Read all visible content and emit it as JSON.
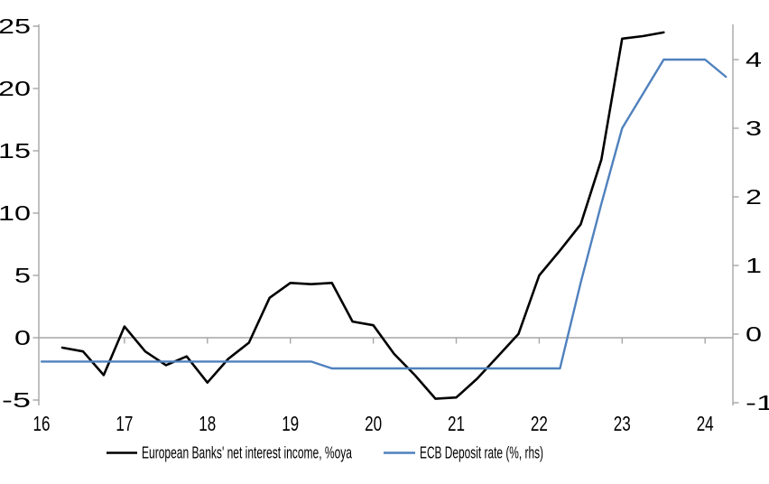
{
  "chart_data": {
    "type": "line",
    "title": "",
    "x_axis": {
      "tick_labels": [
        "16",
        "17",
        "18",
        "19",
        "20",
        "21",
        "22",
        "23",
        "24"
      ],
      "tick_years": [
        16,
        17,
        18,
        19,
        20,
        21,
        22,
        23,
        24
      ],
      "axis_tick_years": [
        17,
        18,
        19,
        20,
        21,
        22,
        23,
        24
      ],
      "range": [
        16,
        24.33
      ],
      "note": "axis line drawn at y=0 of left scale; labels placed at bottom"
    },
    "y_axis_left": {
      "tick_labels": [
        "25",
        "20",
        "15",
        "10",
        "5",
        "0",
        "-5"
      ],
      "ticks": [
        25,
        20,
        15,
        10,
        5,
        0,
        -5
      ],
      "range": [
        -5.4,
        25.1
      ]
    },
    "y_axis_right": {
      "tick_labels": [
        "4",
        "3",
        "2",
        "1",
        "0",
        "-1"
      ],
      "ticks": [
        4,
        3,
        2,
        1,
        0,
        -1
      ],
      "range": [
        -1.05,
        4.5
      ]
    },
    "grid": "zero-line-only",
    "legend_position": "bottom",
    "series": [
      {
        "name": "European Banks' net interest income, %oya",
        "axis": "left",
        "color": "#000000",
        "stroke_width": 2.6,
        "x": [
          16.25,
          16.5,
          16.75,
          17.0,
          17.25,
          17.5,
          17.75,
          18.0,
          18.25,
          18.5,
          18.75,
          19.0,
          19.25,
          19.5,
          19.75,
          20.0,
          20.25,
          20.5,
          20.75,
          21.0,
          21.25,
          21.5,
          21.75,
          22.0,
          22.25,
          22.5,
          22.75,
          23.0,
          23.25,
          23.5
        ],
        "values": [
          -0.8,
          -1.1,
          -3.0,
          0.9,
          -1.1,
          -2.2,
          -1.5,
          -3.6,
          -1.7,
          -0.4,
          3.2,
          4.4,
          4.3,
          4.4,
          1.3,
          1.0,
          -1.3,
          -3.0,
          -4.9,
          -4.8,
          -3.3,
          -1.5,
          0.3,
          5.0,
          7.0,
          9.1,
          14.3,
          24.0,
          24.2,
          24.5
        ]
      },
      {
        "name": "ECB Deposit rate (%, rhs)",
        "axis": "right",
        "color": "#4F81BD",
        "stroke_width": 2.4,
        "x": [
          16.0,
          16.25,
          16.5,
          16.75,
          17.0,
          17.25,
          17.5,
          17.75,
          18.0,
          18.25,
          18.5,
          18.75,
          19.0,
          19.25,
          19.5,
          19.75,
          20.0,
          20.25,
          20.5,
          20.75,
          21.0,
          21.25,
          21.5,
          21.75,
          22.0,
          22.25,
          22.5,
          22.75,
          23.0,
          23.25,
          23.5,
          23.75,
          24.0,
          24.25
        ],
        "values": [
          -0.4,
          -0.4,
          -0.4,
          -0.4,
          -0.4,
          -0.4,
          -0.4,
          -0.4,
          -0.4,
          -0.4,
          -0.4,
          -0.4,
          -0.4,
          -0.4,
          -0.5,
          -0.5,
          -0.5,
          -0.5,
          -0.5,
          -0.5,
          -0.5,
          -0.5,
          -0.5,
          -0.5,
          -0.5,
          -0.5,
          0.75,
          1.9,
          3.0,
          3.5,
          4.0,
          4.0,
          4.0,
          3.75
        ]
      }
    ]
  },
  "colors": {
    "axis_gray": "#A6A6A6",
    "text": "#000000",
    "background": "#FFFFFF"
  }
}
